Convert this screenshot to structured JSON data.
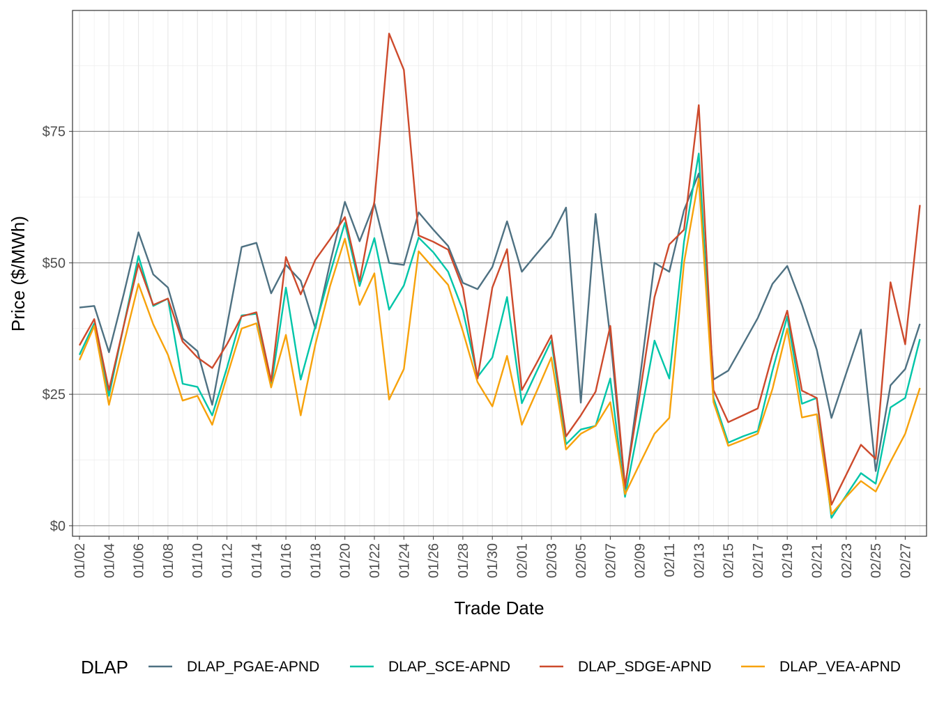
{
  "chart_data": {
    "type": "line",
    "xlabel": "Trade Date",
    "ylabel": "Price ($/MWh)",
    "ylim": [
      -2,
      98
    ],
    "y_ticks": [
      0,
      25,
      50,
      75
    ],
    "y_tick_labels": [
      "$0",
      "$25",
      "$50",
      "$75"
    ],
    "grid": true,
    "legend_position": "bottom",
    "legend_title": "DLAP",
    "x": [
      "01/02",
      "01/03",
      "01/04",
      "01/05",
      "01/06",
      "01/07",
      "01/08",
      "01/09",
      "01/10",
      "01/11",
      "01/12",
      "01/13",
      "01/14",
      "01/15",
      "01/16",
      "01/17",
      "01/18",
      "01/19",
      "01/20",
      "01/21",
      "01/22",
      "01/23",
      "01/24",
      "01/25",
      "01/26",
      "01/27",
      "01/28",
      "01/29",
      "01/30",
      "01/31",
      "02/01",
      "02/02",
      "02/03",
      "02/04",
      "02/05",
      "02/06",
      "02/07",
      "02/08",
      "02/09",
      "02/10",
      "02/11",
      "02/12",
      "02/13",
      "02/14",
      "02/15",
      "02/16",
      "02/17",
      "02/18",
      "02/19",
      "02/20",
      "02/21",
      "02/22",
      "02/23",
      "02/24",
      "02/25",
      "02/26",
      "02/27",
      "02/28"
    ],
    "x_tick_labels": [
      "01/02",
      "01/04",
      "01/06",
      "01/08",
      "01/10",
      "01/12",
      "01/14",
      "01/16",
      "01/18",
      "01/20",
      "01/22",
      "01/24",
      "01/26",
      "01/28",
      "01/30",
      "02/01",
      "02/03",
      "02/05",
      "02/07",
      "02/09",
      "02/11",
      "02/13",
      "02/15",
      "02/17",
      "02/19",
      "02/21",
      "02/23",
      "02/25",
      "02/27"
    ],
    "series": [
      {
        "name": "DLAP_PGAE-APND",
        "color": "#4e7182",
        "values": [
          41.5,
          41.8,
          33.0,
          44.0,
          55.8,
          47.8,
          45.3,
          35.6,
          33.2,
          23.0,
          38.0,
          53.0,
          53.8,
          44.2,
          49.6,
          46.6,
          37.5,
          50.0,
          61.6,
          54.1,
          61.3,
          50.0,
          49.6,
          59.6,
          56.3,
          53.2,
          46.2,
          45.0,
          49.2,
          57.9,
          48.3,
          51.7,
          55.0,
          60.5,
          23.4,
          59.3,
          35.8,
          7.0,
          27.8,
          50.0,
          48.3,
          60.0,
          67.0,
          27.8,
          29.5,
          34.5,
          39.5,
          46.0,
          49.4,
          42.0,
          33.5,
          20.5,
          29.0,
          37.3,
          10.4,
          26.7,
          29.8,
          38.4
        ]
      },
      {
        "name": "DLAP_SCE-APND",
        "color": "#00c5a8",
        "values": [
          32.5,
          38.5,
          24.7,
          38.0,
          51.3,
          41.8,
          43.2,
          27.0,
          26.4,
          21.0,
          30.0,
          40.0,
          40.3,
          26.5,
          45.3,
          27.8,
          38.0,
          48.0,
          57.6,
          45.6,
          54.7,
          41.1,
          45.7,
          54.8,
          52.0,
          48.3,
          41.0,
          28.3,
          32.0,
          43.5,
          23.3,
          29.3,
          35.2,
          15.5,
          18.3,
          19.0,
          28.0,
          5.5,
          20.0,
          35.2,
          28.0,
          54.0,
          70.8,
          24.3,
          15.8,
          17.0,
          18.0,
          29.5,
          39.8,
          23.2,
          24.3,
          1.5,
          5.8,
          10.0,
          8.0,
          22.5,
          24.3,
          35.5
        ]
      },
      {
        "name": "DLAP_SDGE-APND",
        "color": "#cd4a2c",
        "values": [
          34.3,
          39.3,
          25.8,
          38.0,
          49.8,
          42.0,
          43.2,
          35.0,
          32.0,
          30.0,
          34.5,
          39.8,
          40.6,
          27.5,
          51.1,
          44.0,
          50.6,
          54.5,
          58.7,
          46.5,
          61.7,
          93.6,
          86.7,
          55.2,
          54.0,
          52.5,
          45.2,
          28.0,
          45.3,
          52.6,
          25.8,
          30.9,
          36.2,
          17.0,
          21.0,
          25.5,
          38.0,
          7.5,
          25.0,
          43.5,
          53.5,
          56.3,
          80.0,
          25.8,
          19.7,
          21.0,
          22.3,
          32.5,
          40.9,
          25.7,
          24.3,
          4.0,
          9.7,
          15.4,
          12.7,
          46.3,
          34.5,
          61.0
        ]
      },
      {
        "name": "DLAP_VEA-APND",
        "color": "#f7a20b",
        "values": [
          31.5,
          38.0,
          23.0,
          34.5,
          46.0,
          38.3,
          32.5,
          23.8,
          24.7,
          19.2,
          28.4,
          37.5,
          38.5,
          26.3,
          36.3,
          21.0,
          34.5,
          45.6,
          54.6,
          42.0,
          48.0,
          24.0,
          29.8,
          52.2,
          49.0,
          45.8,
          37.0,
          27.3,
          22.7,
          32.3,
          19.2,
          25.5,
          32.0,
          14.5,
          17.5,
          19.0,
          23.5,
          6.0,
          11.8,
          17.5,
          20.5,
          50.0,
          66.0,
          23.5,
          15.2,
          16.3,
          17.5,
          26.0,
          37.5,
          20.6,
          21.2,
          2.2,
          5.5,
          8.5,
          6.5,
          12.2,
          17.5,
          26.2
        ]
      }
    ]
  }
}
